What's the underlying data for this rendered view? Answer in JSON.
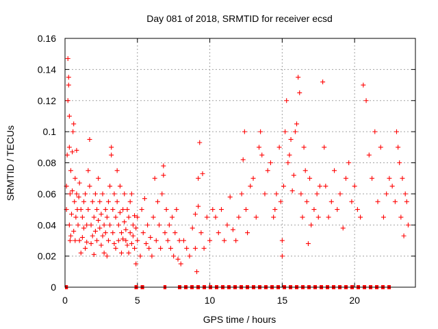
{
  "chart_data": {
    "type": "scatter",
    "title": "Day 081 of 2018, SRMTID for receiver ecsd",
    "xlabel": "GPS time / hours",
    "ylabel": "SRMTID / TECUs",
    "xlim": [
      0,
      24.2
    ],
    "ylim": [
      0,
      0.16
    ],
    "xticks": [
      0,
      5,
      10,
      15,
      20
    ],
    "xtick_labels": [
      "0",
      "5",
      "10",
      "15",
      "20"
    ],
    "yticks": [
      0,
      0.02,
      0.04,
      0.06,
      0.08,
      0.1,
      0.12,
      0.14,
      0.16
    ],
    "ytick_labels": [
      "0",
      "0.02",
      "0.04",
      "0.06",
      "0.08",
      "0.1",
      "0.12",
      "0.14",
      "0.16"
    ],
    "grid": true,
    "marker": "plus",
    "color": "#ff0000",
    "series": [
      {
        "name": "SRMTID",
        "points": [
          [
            0.1,
            0.05
          ],
          [
            0.1,
            0.065
          ],
          [
            0.15,
            0.085
          ],
          [
            0.2,
            0.12
          ],
          [
            0.2,
            0.147
          ],
          [
            0.25,
            0.135
          ],
          [
            0.25,
            0.13
          ],
          [
            0.3,
            0.11
          ],
          [
            0.3,
            0.09
          ],
          [
            0.3,
            0.04
          ],
          [
            0.35,
            0.03
          ],
          [
            0.35,
            0.06
          ],
          [
            0.4,
            0.075
          ],
          [
            0.4,
            0.033
          ],
          [
            0.45,
            0.047
          ],
          [
            0.5,
            0.087
          ],
          [
            0.5,
            0.062
          ],
          [
            0.55,
            0.1
          ],
          [
            0.6,
            0.105
          ],
          [
            0.6,
            0.036
          ],
          [
            0.65,
            0.055
          ],
          [
            0.7,
            0.07
          ],
          [
            0.7,
            0.03
          ],
          [
            0.75,
            0.045
          ],
          [
            0.8,
            0.088
          ],
          [
            0.8,
            0.06
          ],
          [
            0.85,
            0.05
          ],
          [
            0.9,
            0.04
          ],
          [
            0.95,
            0.058
          ],
          [
            1.0,
            0.03
          ],
          [
            1.0,
            0.067
          ],
          [
            1.1,
            0.022
          ],
          [
            1.1,
            0.05
          ],
          [
            1.2,
            0.045
          ],
          [
            1.2,
            0.032
          ],
          [
            1.3,
            0.055
          ],
          [
            1.3,
            0.038
          ],
          [
            1.4,
            0.025
          ],
          [
            1.4,
            0.06
          ],
          [
            1.5,
            0.04
          ],
          [
            1.5,
            0.029
          ],
          [
            1.6,
            0.075
          ],
          [
            1.6,
            0.05
          ],
          [
            1.7,
            0.095
          ],
          [
            1.7,
            0.065
          ],
          [
            1.8,
            0.04
          ],
          [
            1.8,
            0.028
          ],
          [
            1.9,
            0.055
          ],
          [
            1.9,
            0.033
          ],
          [
            2.0,
            0.045
          ],
          [
            2.0,
            0.021
          ],
          [
            2.1,
            0.06
          ],
          [
            2.1,
            0.036
          ],
          [
            2.2,
            0.05
          ],
          [
            2.2,
            0.03
          ],
          [
            2.3,
            0.07
          ],
          [
            2.3,
            0.043
          ],
          [
            2.4,
            0.055
          ],
          [
            2.4,
            0.038
          ],
          [
            2.5,
            0.027
          ],
          [
            2.5,
            0.047
          ],
          [
            2.6,
            0.06
          ],
          [
            2.6,
            0.033
          ],
          [
            2.7,
            0.04
          ],
          [
            2.7,
            0.022
          ],
          [
            2.8,
            0.035
          ],
          [
            2.8,
            0.05
          ],
          [
            2.9,
            0.02
          ],
          [
            2.9,
            0.045
          ],
          [
            3.0,
            0.03
          ],
          [
            3.0,
            0.055
          ],
          [
            3.1,
            0.065
          ],
          [
            3.1,
            0.04
          ],
          [
            3.2,
            0.09
          ],
          [
            3.2,
            0.085
          ],
          [
            3.3,
            0.05
          ],
          [
            3.3,
            0.035
          ],
          [
            3.4,
            0.028
          ],
          [
            3.4,
            0.06
          ],
          [
            3.5,
            0.045
          ],
          [
            3.5,
            0.025
          ],
          [
            3.6,
            0.075
          ],
          [
            3.6,
            0.055
          ],
          [
            3.7,
            0.04
          ],
          [
            3.7,
            0.03
          ],
          [
            3.8,
            0.065
          ],
          [
            3.8,
            0.048
          ],
          [
            3.9,
            0.035
          ],
          [
            3.9,
            0.022
          ],
          [
            4.0,
            0.05
          ],
          [
            4.0,
            0.031
          ],
          [
            4.1,
            0.06
          ],
          [
            4.1,
            0.042
          ],
          [
            4.2,
            0.03
          ],
          [
            4.2,
            0.037
          ],
          [
            4.3,
            0.027
          ],
          [
            4.3,
            0.05
          ],
          [
            4.4,
            0.045
          ],
          [
            4.4,
            0.022
          ],
          [
            4.5,
            0.055
          ],
          [
            4.5,
            0.035
          ],
          [
            4.6,
            0.06
          ],
          [
            4.6,
            0.028
          ],
          [
            4.7,
            0.04
          ],
          [
            4.7,
            0.033
          ],
          [
            4.8,
            0.025
          ],
          [
            4.8,
            0.046
          ],
          [
            4.9,
            0.038
          ],
          [
            4.9,
            0.015
          ],
          [
            5.0,
            0.03
          ],
          [
            5.0,
            0.045
          ],
          [
            5.2,
            0.02
          ],
          [
            5.3,
            0.05
          ],
          [
            5.4,
            0.035
          ],
          [
            5.5,
            0.057
          ],
          [
            5.6,
            0.028
          ],
          [
            5.7,
            0.04
          ],
          [
            5.8,
            0.025
          ],
          [
            5.9,
            0.032
          ],
          [
            6.0,
            0.02
          ],
          [
            6.1,
            0.045
          ],
          [
            6.2,
            0.07
          ],
          [
            6.3,
            0.03
          ],
          [
            6.4,
            0.055
          ],
          [
            6.5,
            0.04
          ],
          [
            6.6,
            0.025
          ],
          [
            6.7,
            0.06
          ],
          [
            6.8,
            0.078
          ],
          [
            6.8,
            0.072
          ],
          [
            6.9,
            0.035
          ],
          [
            7.0,
            0.05
          ],
          [
            7.1,
            0.03
          ],
          [
            7.2,
            0.04
          ],
          [
            7.3,
            0.025
          ],
          [
            7.4,
            0.045
          ],
          [
            7.5,
            0.02
          ],
          [
            7.6,
            0.035
          ],
          [
            7.7,
            0.05
          ],
          [
            7.8,
            0.018
          ],
          [
            7.9,
            0.03
          ],
          [
            8.0,
            0.015
          ],
          [
            8.2,
            0.03
          ],
          [
            8.4,
            0.025
          ],
          [
            8.6,
            0.02
          ],
          [
            8.8,
            0.038
          ],
          [
            9.0,
            0.047
          ],
          [
            9.0,
            0.025
          ],
          [
            9.1,
            0.01
          ],
          [
            9.2,
            0.052
          ],
          [
            9.2,
            0.07
          ],
          [
            9.3,
            0.093
          ],
          [
            9.4,
            0.035
          ],
          [
            9.5,
            0.073
          ],
          [
            9.6,
            0.025
          ],
          [
            9.8,
            0.045
          ],
          [
            10.0,
            0.03
          ],
          [
            10.2,
            0.05
          ],
          [
            10.4,
            0.045
          ],
          [
            10.6,
            0.035
          ],
          [
            10.8,
            0.05
          ],
          [
            11.0,
            0.03
          ],
          [
            11.2,
            0.04
          ],
          [
            11.4,
            0.058
          ],
          [
            11.6,
            0.037
          ],
          [
            11.8,
            0.03
          ],
          [
            12.0,
            0.045
          ],
          [
            12.2,
            0.06
          ],
          [
            12.3,
            0.082
          ],
          [
            12.4,
            0.1
          ],
          [
            12.5,
            0.05
          ],
          [
            12.6,
            0.035
          ],
          [
            12.8,
            0.065
          ],
          [
            13.0,
            0.07
          ],
          [
            13.2,
            0.045
          ],
          [
            13.4,
            0.09
          ],
          [
            13.5,
            0.1
          ],
          [
            13.6,
            0.085
          ],
          [
            13.8,
            0.06
          ],
          [
            14.0,
            0.075
          ],
          [
            14.2,
            0.08
          ],
          [
            14.4,
            0.045
          ],
          [
            14.5,
            0.05
          ],
          [
            14.6,
            0.06
          ],
          [
            14.8,
            0.09
          ],
          [
            14.9,
            0.055
          ],
          [
            15.0,
            0.03
          ],
          [
            15.0,
            0.02
          ],
          [
            15.1,
            0.065
          ],
          [
            15.2,
            0.1
          ],
          [
            15.3,
            0.12
          ],
          [
            15.4,
            0.08
          ],
          [
            15.5,
            0.085
          ],
          [
            15.6,
            0.095
          ],
          [
            15.7,
            0.062
          ],
          [
            15.8,
            0.072
          ],
          [
            15.9,
            0.1
          ],
          [
            16.0,
            0.105
          ],
          [
            16.1,
            0.135
          ],
          [
            16.2,
            0.125
          ],
          [
            16.3,
            0.06
          ],
          [
            16.4,
            0.045
          ],
          [
            16.5,
            0.09
          ],
          [
            16.6,
            0.075
          ],
          [
            16.7,
            0.055
          ],
          [
            16.8,
            0.028
          ],
          [
            16.9,
            0.07
          ],
          [
            17.0,
            0.04
          ],
          [
            17.2,
            0.05
          ],
          [
            17.4,
            0.06
          ],
          [
            17.5,
            0.045
          ],
          [
            17.6,
            0.065
          ],
          [
            17.8,
            0.132
          ],
          [
            17.9,
            0.09
          ],
          [
            18.0,
            0.065
          ],
          [
            18.2,
            0.045
          ],
          [
            18.4,
            0.055
          ],
          [
            18.6,
            0.075
          ],
          [
            18.8,
            0.05
          ],
          [
            19.0,
            0.06
          ],
          [
            19.2,
            0.038
          ],
          [
            19.4,
            0.07
          ],
          [
            19.6,
            0.08
          ],
          [
            19.8,
            0.055
          ],
          [
            20.0,
            0.065
          ],
          [
            20.2,
            0.05
          ],
          [
            20.4,
            0.045
          ],
          [
            20.6,
            0.13
          ],
          [
            20.8,
            0.12
          ],
          [
            21.0,
            0.085
          ],
          [
            21.2,
            0.07
          ],
          [
            21.4,
            0.1
          ],
          [
            21.6,
            0.055
          ],
          [
            21.8,
            0.09
          ],
          [
            22.0,
            0.045
          ],
          [
            22.2,
            0.06
          ],
          [
            22.4,
            0.07
          ],
          [
            22.6,
            0.065
          ],
          [
            22.8,
            0.055
          ],
          [
            22.9,
            0.1
          ],
          [
            23.0,
            0.09
          ],
          [
            23.1,
            0.08
          ],
          [
            23.2,
            0.045
          ],
          [
            23.3,
            0.07
          ],
          [
            23.4,
            0.033
          ],
          [
            23.5,
            0.06
          ],
          [
            23.6,
            0.055
          ],
          [
            23.7,
            0.04
          ]
        ]
      }
    ],
    "zero_marker_segments": [
      [
        0.0,
        0.2
      ],
      [
        4.8,
        5.6
      ],
      [
        6.8,
        7.0
      ],
      [
        7.8,
        22.5
      ]
    ]
  }
}
